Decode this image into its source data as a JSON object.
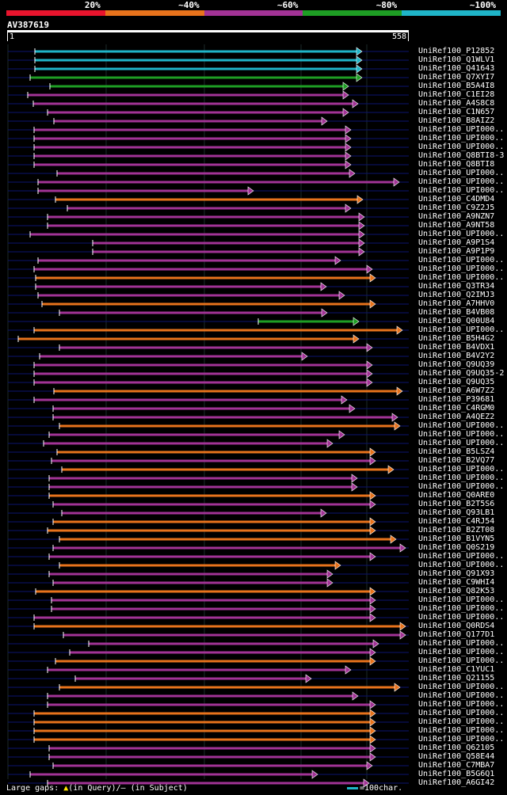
{
  "legend": {
    "segments": [
      {
        "label": "20%",
        "color": "#e8142d"
      },
      {
        "label": "~40%",
        "color": "#e8731c"
      },
      {
        "label": "~60%",
        "color": "#a23396"
      },
      {
        "label": "~80%",
        "color": "#1e9e24"
      },
      {
        "label": "~100%",
        "color": "#1fb5c8"
      }
    ]
  },
  "query": {
    "name": "AV387619",
    "start": "1",
    "end": "558",
    "length": 558
  },
  "hits": [
    {
      "name": "UniRef100_P12852",
      "color": "#1fb5c8",
      "start": 44,
      "end": 457
    },
    {
      "name": "UniRef100_Q1WLV1",
      "color": "#1fb5c8",
      "start": 44,
      "end": 457
    },
    {
      "name": "UniRef100_Q41643",
      "color": "#1fb5c8",
      "start": 44,
      "end": 457
    },
    {
      "name": "UniRef100_Q7XYI7",
      "color": "#1e9e24",
      "start": 38,
      "end": 457
    },
    {
      "name": "UniRef100_B5A4I8",
      "color": "#1e9e24",
      "start": 63,
      "end": 440
    },
    {
      "name": "UniRef100_C1EI28",
      "color": "#a23396",
      "start": 35,
      "end": 440
    },
    {
      "name": "UniRef100_A4S8C8",
      "color": "#a23396",
      "start": 42,
      "end": 452
    },
    {
      "name": "UniRef100_C1N657",
      "color": "#a23396",
      "start": 60,
      "end": 440
    },
    {
      "name": "UniRef100_B8AIZ2",
      "color": "#a23396",
      "start": 68,
      "end": 413
    },
    {
      "name": "UniRef100_UPI000..",
      "color": "#a23396",
      "start": 43,
      "end": 443
    },
    {
      "name": "UniRef100_UPI000..",
      "color": "#a23396",
      "start": 43,
      "end": 443
    },
    {
      "name": "UniRef100_UPI000..",
      "color": "#a23396",
      "start": 43,
      "end": 443
    },
    {
      "name": "UniRef100_Q8BTI8-3",
      "color": "#a23396",
      "start": 43,
      "end": 443
    },
    {
      "name": "UniRef100_Q8BTI8",
      "color": "#a23396",
      "start": 43,
      "end": 443
    },
    {
      "name": "UniRef100_UPI000..",
      "color": "#a23396",
      "start": 72,
      "end": 448
    },
    {
      "name": "UniRef100_UPI000..",
      "color": "#a23396",
      "start": 48,
      "end": 504
    },
    {
      "name": "UniRef100_UPI000..",
      "color": "#a23396",
      "start": 48,
      "end": 320
    },
    {
      "name": "UniRef100_C4DMD4",
      "color": "#e8731c",
      "start": 70,
      "end": 458
    },
    {
      "name": "UniRef100_C9Z2J5",
      "color": "#a23396",
      "start": 85,
      "end": 443
    },
    {
      "name": "UniRef100_A9NZN7",
      "color": "#a23396",
      "start": 60,
      "end": 460
    },
    {
      "name": "UniRef100_A9NT58",
      "color": "#a23396",
      "start": 60,
      "end": 460
    },
    {
      "name": "UniRef100_UPI000..",
      "color": "#a23396",
      "start": 38,
      "end": 460
    },
    {
      "name": "UniRef100_A9P1S4",
      "color": "#a23396",
      "start": 117,
      "end": 460
    },
    {
      "name": "UniRef100_A9P1P9",
      "color": "#a23396",
      "start": 117,
      "end": 460
    },
    {
      "name": "UniRef100_UPI000..",
      "color": "#a23396",
      "start": 48,
      "end": 430
    },
    {
      "name": "UniRef100_UPI000..",
      "color": "#a23396",
      "start": 43,
      "end": 470
    },
    {
      "name": "UniRef100_UPI000..",
      "color": "#e8731c",
      "start": 45,
      "end": 474
    },
    {
      "name": "UniRef100_Q3TR34",
      "color": "#a23396",
      "start": 45,
      "end": 412
    },
    {
      "name": "UniRef100_Q2IMJ3",
      "color": "#a23396",
      "start": 48,
      "end": 435
    },
    {
      "name": "UniRef100_A7HHV0",
      "color": "#e8731c",
      "start": 53,
      "end": 474
    },
    {
      "name": "UniRef100_B4VB08",
      "color": "#a23396",
      "start": 75,
      "end": 413
    },
    {
      "name": "UniRef100_Q00U84",
      "color": "#1e9e24",
      "start": 326,
      "end": 453
    },
    {
      "name": "UniRef100_UPI000..",
      "color": "#e8731c",
      "start": 43,
      "end": 508
    },
    {
      "name": "UniRef100_B5H4G2",
      "color": "#e8731c",
      "start": 23,
      "end": 453
    },
    {
      "name": "UniRef100_B4VDX1",
      "color": "#a23396",
      "start": 75,
      "end": 470
    },
    {
      "name": "UniRef100_B4V2Y2",
      "color": "#a23396",
      "start": 50,
      "end": 388
    },
    {
      "name": "UniRef100_Q9UQ39",
      "color": "#a23396",
      "start": 43,
      "end": 470
    },
    {
      "name": "UniRef100_Q9UQ35-2",
      "color": "#a23396",
      "start": 43,
      "end": 470
    },
    {
      "name": "UniRef100_Q9UQ35",
      "color": "#a23396",
      "start": 43,
      "end": 470
    },
    {
      "name": "UniRef100_A6W7Z2",
      "color": "#e8731c",
      "start": 68,
      "end": 508
    },
    {
      "name": "UniRef100_P39681",
      "color": "#a23396",
      "start": 43,
      "end": 438
    },
    {
      "name": "UniRef100_C4RGM0",
      "color": "#a23396",
      "start": 67,
      "end": 448
    },
    {
      "name": "UniRef100_A4QEZ2",
      "color": "#a23396",
      "start": 67,
      "end": 502
    },
    {
      "name": "UniRef100_UPI000..",
      "color": "#e8731c",
      "start": 75,
      "end": 505
    },
    {
      "name": "UniRef100_UPI000..",
      "color": "#a23396",
      "start": 62,
      "end": 435
    },
    {
      "name": "UniRef100_UPI000..",
      "color": "#a23396",
      "start": 55,
      "end": 420
    },
    {
      "name": "UniRef100_B5LSZ4",
      "color": "#e8731c",
      "start": 72,
      "end": 474
    },
    {
      "name": "UniRef100_B2VQ77",
      "color": "#a23396",
      "start": 65,
      "end": 474
    },
    {
      "name": "UniRef100_UPI000..",
      "color": "#e8731c",
      "start": 78,
      "end": 497
    },
    {
      "name": "UniRef100_UPI000..",
      "color": "#a23396",
      "start": 62,
      "end": 451
    },
    {
      "name": "UniRef100_UPI000..",
      "color": "#a23396",
      "start": 62,
      "end": 451
    },
    {
      "name": "UniRef100_Q0ARE0",
      "color": "#e8731c",
      "start": 62,
      "end": 474
    },
    {
      "name": "UniRef100_B2T5S6",
      "color": "#a23396",
      "start": 67,
      "end": 474
    },
    {
      "name": "UniRef100_Q93LB1",
      "color": "#a23396",
      "start": 78,
      "end": 412
    },
    {
      "name": "UniRef100_C4RJ54",
      "color": "#e8731c",
      "start": 67,
      "end": 474
    },
    {
      "name": "UniRef100_B2ZT08",
      "color": "#e8731c",
      "start": 60,
      "end": 474
    },
    {
      "name": "UniRef100_B1VYN5",
      "color": "#e8731c",
      "start": 75,
      "end": 500
    },
    {
      "name": "UniRef100_Q0S219",
      "color": "#a23396",
      "start": 67,
      "end": 512
    },
    {
      "name": "UniRef100_UPI000..",
      "color": "#a23396",
      "start": 62,
      "end": 474
    },
    {
      "name": "UniRef100_UPI000..",
      "color": "#e8731c",
      "start": 75,
      "end": 430
    },
    {
      "name": "UniRef100_Q91X93",
      "color": "#a23396",
      "start": 62,
      "end": 420
    },
    {
      "name": "UniRef100_C9WHI4",
      "color": "#a23396",
      "start": 67,
      "end": 420
    },
    {
      "name": "UniRef100_Q82K53",
      "color": "#e8731c",
      "start": 45,
      "end": 474
    },
    {
      "name": "UniRef100_UPI000..",
      "color": "#a23396",
      "start": 65,
      "end": 474
    },
    {
      "name": "UniRef100_UPI000..",
      "color": "#a23396",
      "start": 65,
      "end": 474
    },
    {
      "name": "UniRef100_UPI000..",
      "color": "#a23396",
      "start": 43,
      "end": 474
    },
    {
      "name": "UniRef100_Q0RDS4",
      "color": "#e8731c",
      "start": 43,
      "end": 512
    },
    {
      "name": "UniRef100_Q177D1",
      "color": "#a23396",
      "start": 80,
      "end": 512
    },
    {
      "name": "UniRef100_UPI000..",
      "color": "#a23396",
      "start": 112,
      "end": 478
    },
    {
      "name": "UniRef100_UPI000..",
      "color": "#a23396",
      "start": 88,
      "end": 474
    },
    {
      "name": "UniRef100_UPI000..",
      "color": "#e8731c",
      "start": 70,
      "end": 474
    },
    {
      "name": "UniRef100_C1YUC1",
      "color": "#a23396",
      "start": 60,
      "end": 443
    },
    {
      "name": "UniRef100_Q21155",
      "color": "#a23396",
      "start": 95,
      "end": 393
    },
    {
      "name": "UniRef100_UPI000..",
      "color": "#e8731c",
      "start": 75,
      "end": 505
    },
    {
      "name": "UniRef100_UPI000..",
      "color": "#a23396",
      "start": 60,
      "end": 452
    },
    {
      "name": "UniRef100_UPI000..",
      "color": "#a23396",
      "start": 60,
      "end": 474
    },
    {
      "name": "UniRef100_UPI000..",
      "color": "#e8731c",
      "start": 43,
      "end": 474
    },
    {
      "name": "UniRef100_UPI000..",
      "color": "#e8731c",
      "start": 43,
      "end": 474
    },
    {
      "name": "UniRef100_UPI000..",
      "color": "#e8731c",
      "start": 43,
      "end": 474
    },
    {
      "name": "UniRef100_UPI000..",
      "color": "#e8731c",
      "start": 43,
      "end": 474
    },
    {
      "name": "UniRef100_Q62105",
      "color": "#a23396",
      "start": 62,
      "end": 474
    },
    {
      "name": "UniRef100_Q58E44",
      "color": "#a23396",
      "start": 62,
      "end": 474
    },
    {
      "name": "UniRef100_C7MBA7",
      "color": "#a23396",
      "start": 67,
      "end": 470
    },
    {
      "name": "UniRef100_B5G6Q1",
      "color": "#a23396",
      "start": 38,
      "end": 401
    },
    {
      "name": "UniRef100_A6GI42",
      "color": "#a23396",
      "start": 60,
      "end": 466
    }
  ],
  "footer": {
    "gaps_label": "Large gaps: ",
    "query_marker": "▲",
    "query_text": "(in Query)/",
    "subject_marker": "–",
    "subject_text": " (in Subject)",
    "scale_label": "=100char."
  }
}
